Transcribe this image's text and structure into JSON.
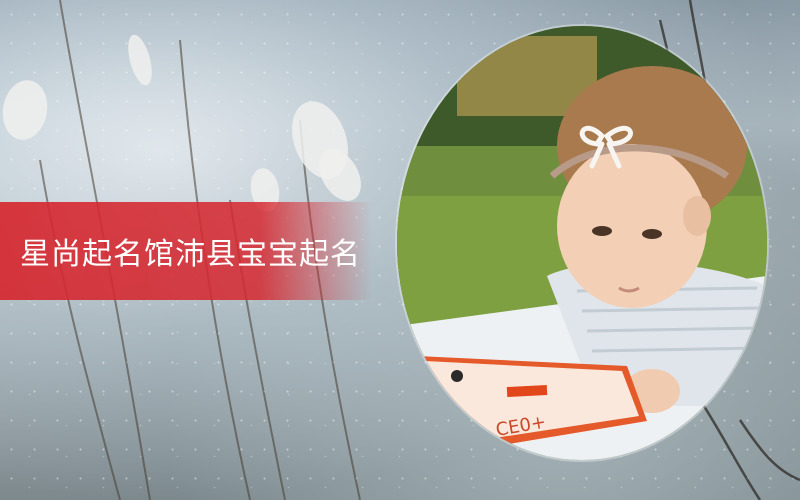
{
  "banner": {
    "title": "星尚起名馆沛县宝宝起名",
    "accent_color": "#d62830"
  },
  "background": {
    "subject": "frosted reed grass in snow",
    "palette": [
      "#8a9aa6",
      "#b9c6cf",
      "#7f8a8e"
    ]
  },
  "photo": {
    "subject": "baby girl with white bow headband reading a picture book on grass",
    "shape": "oval"
  }
}
